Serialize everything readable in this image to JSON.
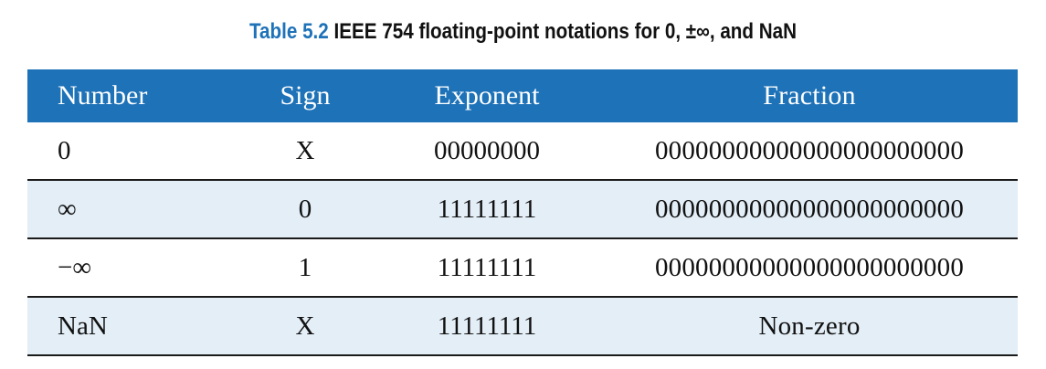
{
  "caption": {
    "label": "Table 5.2",
    "text": "IEEE 754 floating-point notations for 0, ±∞, and NaN"
  },
  "table": {
    "headers": [
      "Number",
      "Sign",
      "Exponent",
      "Fraction"
    ],
    "rows": [
      [
        "0",
        "X",
        "00000000",
        "00000000000000000000000"
      ],
      [
        "∞",
        "0",
        "11111111",
        "00000000000000000000000"
      ],
      [
        "−∞",
        "1",
        "11111111",
        "00000000000000000000000"
      ],
      [
        "NaN",
        "X",
        "11111111",
        "Non-zero"
      ]
    ]
  },
  "colors": {
    "header_background": "#1e72b8",
    "header_text": "#ffffff",
    "shaded_row": "#e3eef7",
    "caption_label": "#1e72b8"
  }
}
